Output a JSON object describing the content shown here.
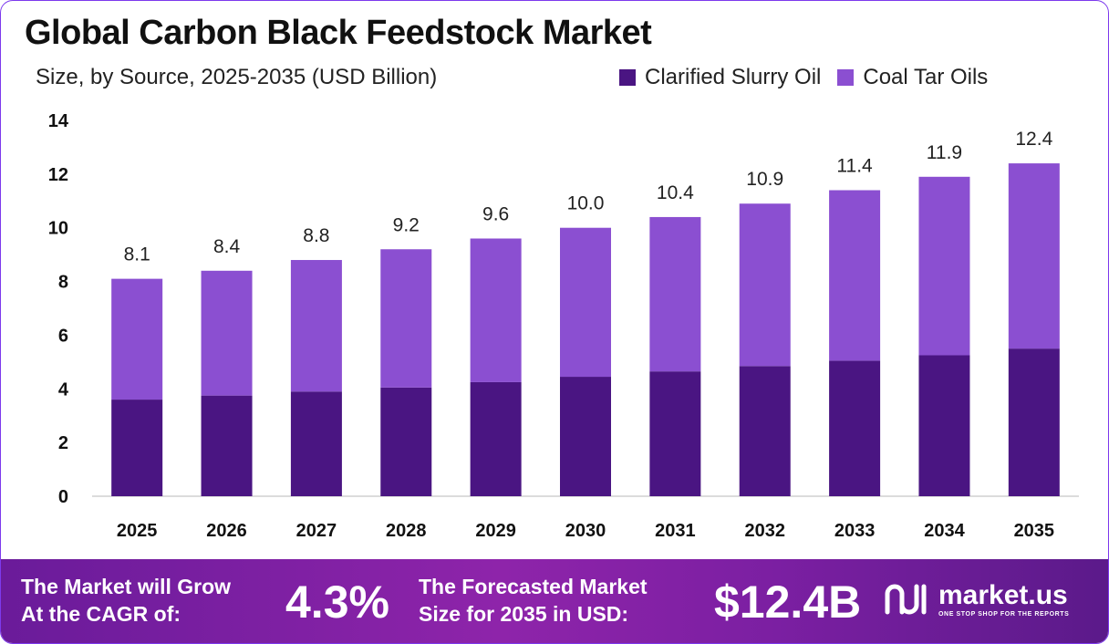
{
  "header": {
    "title": "Global Carbon Black Feedstock Market",
    "subtitle": "Size, by Source, 2025-2035 (USD Billion)"
  },
  "legend": {
    "items": [
      {
        "label": "Clarified Slurry Oil",
        "color": "#4a1582"
      },
      {
        "label": "Coal Tar Oils",
        "color": "#8b4fd1"
      }
    ]
  },
  "chart_data": {
    "type": "bar",
    "stacked": true,
    "categories": [
      "2025",
      "2026",
      "2027",
      "2028",
      "2029",
      "2030",
      "2031",
      "2032",
      "2033",
      "2034",
      "2035"
    ],
    "series": [
      {
        "name": "Clarified Slurry Oil",
        "color": "#4a1582",
        "values": [
          3.6,
          3.75,
          3.9,
          4.05,
          4.25,
          4.45,
          4.65,
          4.85,
          5.05,
          5.25,
          5.5
        ]
      },
      {
        "name": "Coal Tar Oils",
        "color": "#8b4fd1",
        "values": [
          4.5,
          4.65,
          4.9,
          5.15,
          5.35,
          5.55,
          5.75,
          6.05,
          6.35,
          6.65,
          6.9
        ]
      }
    ],
    "totals": [
      "8.1",
      "8.4",
      "8.8",
      "9.2",
      "9.6",
      "10.0",
      "10.4",
      "10.9",
      "11.4",
      "11.9",
      "12.4"
    ],
    "yticks": [
      0,
      2,
      4,
      6,
      8,
      10,
      12,
      14
    ],
    "ylim": [
      0,
      14
    ],
    "grid": false
  },
  "footer": {
    "cagr_label_line1": "The Market will Grow",
    "cagr_label_line2": "At the CAGR of:",
    "cagr_value": "4.3%",
    "forecast_label_line1": "The Forecasted Market",
    "forecast_label_line2": "Size for 2035 in USD:",
    "forecast_value": "$12.4B",
    "brand_name": "market.us",
    "brand_tagline": "ONE STOP SHOP FOR THE REPORTS"
  }
}
